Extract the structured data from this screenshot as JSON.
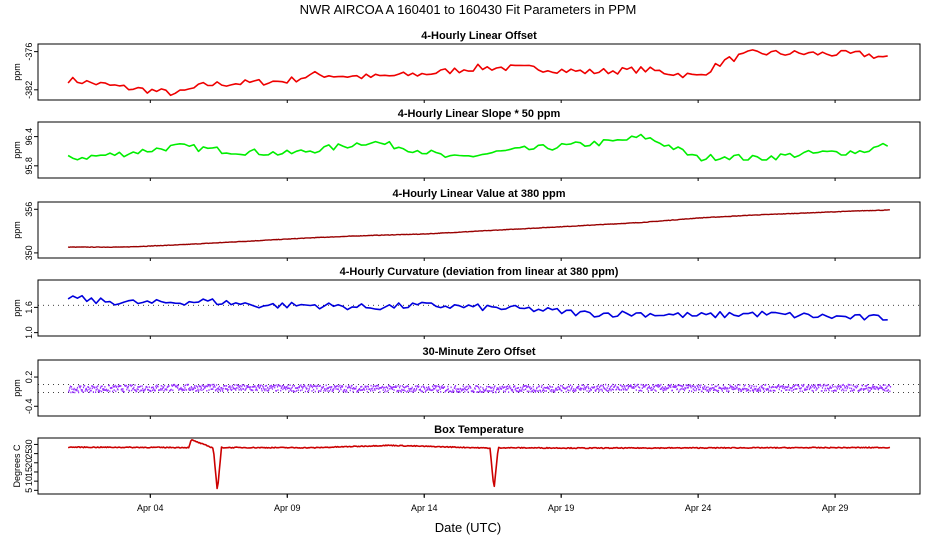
{
  "figure": {
    "title": "NWR   AIRCOA A   160401 to 160430   Fit Parameters in PPM",
    "xlabel": "Date (UTC)",
    "x_ticks": [
      {
        "day": 4,
        "label": "Apr 04"
      },
      {
        "day": 9,
        "label": "Apr 09"
      },
      {
        "day": 14,
        "label": "Apr 14"
      },
      {
        "day": 19,
        "label": "Apr 19"
      },
      {
        "day": 24,
        "label": "Apr 24"
      },
      {
        "day": 29,
        "label": "Apr 29"
      }
    ],
    "xlim": [
      -0.1,
      32.1
    ]
  },
  "chart_data": [
    {
      "type": "line",
      "title": "4-Hourly Linear Offset",
      "ylabel": "ppm",
      "color": "#ee0000",
      "ylim": [
        -383.6,
        -374.8
      ],
      "y_ticks": [
        {
          "v": -376,
          "label": "-376"
        },
        {
          "v": -382,
          "label": "-382"
        }
      ],
      "x": [
        1,
        3,
        5,
        6,
        7,
        9,
        10,
        12,
        14,
        16,
        18,
        20,
        22,
        24,
        25,
        26,
        28,
        30,
        31
      ],
      "values": [
        -380.4,
        -381.6,
        -382.6,
        -381.2,
        -381.0,
        -380.6,
        -379.6,
        -380.0,
        -379.5,
        -378.5,
        -378.6,
        -379.2,
        -378.8,
        -379.9,
        -377.4,
        -376.2,
        -376.3,
        -376.4,
        -377.0
      ],
      "hline": null
    },
    {
      "type": "line",
      "title": "4-Hourly Linear Slope * 50 ppm",
      "ylabel": "ppm",
      "color": "#00ee00",
      "ylim": [
        95.55,
        96.7
      ],
      "y_ticks": [
        {
          "v": 96.4,
          "label": "96.4"
        },
        {
          "v": 95.8,
          "label": "95.8"
        }
      ],
      "x": [
        1,
        3,
        5,
        7,
        9,
        11,
        12,
        14,
        15,
        17,
        19,
        21,
        22,
        23,
        24,
        25,
        26,
        28,
        30,
        31
      ],
      "values": [
        95.95,
        96.05,
        96.2,
        96.1,
        96.05,
        96.2,
        96.3,
        96.1,
        95.95,
        96.1,
        96.2,
        96.3,
        96.4,
        96.2,
        95.95,
        96.0,
        95.95,
        96.05,
        96.1,
        96.25
      ],
      "hline": null
    },
    {
      "type": "line",
      "title": "4-Hourly Linear Value at 380 ppm",
      "ylabel": "ppm",
      "color": "#990000",
      "ylim": [
        349.3,
        357.0
      ],
      "y_ticks": [
        {
          "v": 356,
          "label": "356"
        },
        {
          "v": 350,
          "label": "350"
        }
      ],
      "x": [
        1,
        3,
        5,
        6,
        8,
        10,
        12,
        14,
        16,
        18,
        20,
        22,
        24,
        26,
        28,
        30,
        31
      ],
      "values": [
        350.8,
        350.8,
        351.1,
        351.3,
        351.7,
        352.1,
        352.4,
        352.6,
        353.0,
        353.4,
        353.8,
        354.2,
        354.8,
        355.2,
        355.5,
        355.8,
        355.9
      ],
      "hline": null
    },
    {
      "type": "line",
      "title": "4-Hourly Curvature (deviation from linear at 380 ppm)",
      "ylabel": "ppm",
      "color": "#0000dd",
      "ylim": [
        0.92,
        2.25
      ],
      "y_ticks": [
        {
          "v": 1.6,
          "label": "1.6"
        },
        {
          "v": 1.0,
          "label": "1.0"
        }
      ],
      "x": [
        1,
        2,
        4,
        6,
        8,
        10,
        12,
        14,
        16,
        18,
        20,
        22,
        24,
        26,
        28,
        30,
        31
      ],
      "values": [
        1.85,
        1.75,
        1.7,
        1.75,
        1.65,
        1.65,
        1.6,
        1.65,
        1.6,
        1.55,
        1.45,
        1.45,
        1.4,
        1.45,
        1.4,
        1.35,
        1.35
      ],
      "hline": 1.65
    },
    {
      "type": "scatter",
      "title": "30-Minute Zero Offset",
      "ylabel": "ppm",
      "color": "#9933ff",
      "ylim": [
        -0.6,
        0.55
      ],
      "y_ticks": [
        {
          "v": 0.2,
          "label": "0.2"
        },
        {
          "v": -0.4,
          "label": "-0.4"
        }
      ],
      "x": [
        1,
        5,
        9,
        13,
        17,
        21,
        25,
        29,
        31
      ],
      "values": [
        -0.05,
        -0.02,
        -0.03,
        -0.04,
        -0.05,
        -0.02,
        -0.03,
        -0.02,
        -0.03
      ],
      "hline": [
        0.05,
        -0.12
      ]
    },
    {
      "type": "line",
      "title": "Box Temperature",
      "ylabel": "Degrees C",
      "color": "#cc0000",
      "ylim": [
        3,
        33.5
      ],
      "y_ticks": [
        {
          "v": 30,
          "label": "30"
        },
        {
          "v": 25,
          "label": "25"
        },
        {
          "v": 20,
          "label": "20"
        },
        {
          "v": 15,
          "label": "15"
        },
        {
          "v": 10,
          "label": "10"
        },
        {
          "v": 5,
          "label": "5"
        }
      ],
      "x": [
        1,
        5.4,
        5.5,
        6.3,
        6.45,
        6.6,
        10,
        12.7,
        16.4,
        16.55,
        16.7,
        20,
        31
      ],
      "values": [
        28.5,
        28.3,
        32.5,
        28.0,
        4.5,
        28.3,
        28.2,
        29.5,
        28.0,
        5.5,
        28.2,
        28.0,
        28.3
      ],
      "hline": null
    }
  ]
}
